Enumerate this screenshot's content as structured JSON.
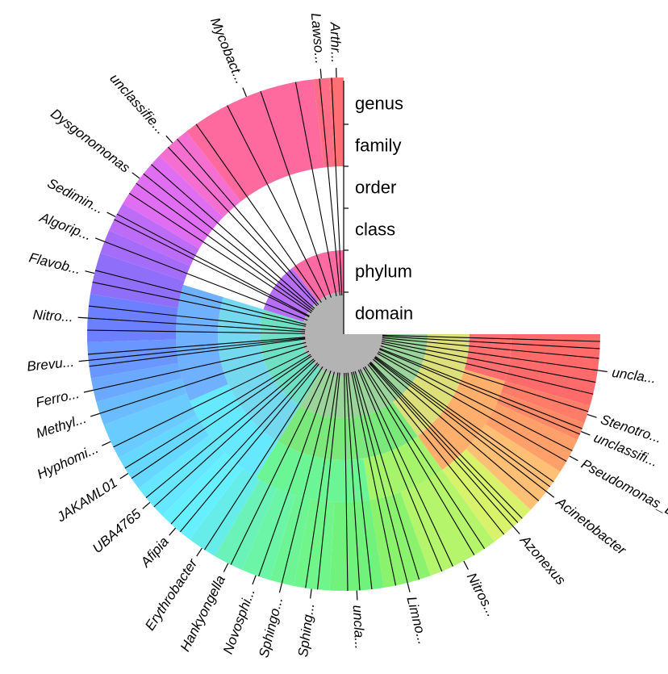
{
  "chart_data": {
    "type": "sunburst",
    "title": "",
    "ranks": [
      "genus",
      "family",
      "order",
      "class",
      "phylum",
      "domain"
    ],
    "arc_span_deg": 270,
    "outer_labels": [
      "unclа...",
      "Stenotro...",
      "unclassifi...",
      "Pseudomonas_E",
      "Acinetobacter",
      "Azonexus",
      "Nitros...",
      "Limno...",
      "uncla...",
      "Sphing...",
      "Sphingo...",
      "Novosphi...",
      "Hankyongella",
      "Erythrobacter",
      "Afipia",
      "UBA4765",
      "JAKAML01",
      "Hyphomi...",
      "Methyl...",
      "Ferro...",
      "Brevu...",
      "Nitro...",
      "Flavob...",
      "Algorip...",
      "Sedimin...",
      "Dysgonomonas",
      "unclassifie...",
      "Mycobact...",
      "Lawso...",
      "Arthr..."
    ],
    "inner_groups": [
      {
        "level": "domain",
        "name": "",
        "start": 0.0,
        "end": 1.0,
        "color": "#b3b3b3"
      },
      {
        "level": "phylum",
        "name": "",
        "start": 0.0,
        "end": 0.45,
        "color": "#9ad49b"
      },
      {
        "level": "phylum",
        "name": "",
        "start": 0.45,
        "end": 0.73,
        "color": "#6fe0c4"
      },
      {
        "level": "phylum",
        "name": "",
        "start": 0.73,
        "end": 0.86,
        "color": "#b56ef5"
      },
      {
        "level": "phylum",
        "name": "",
        "start": 0.86,
        "end": 1.0,
        "color": "#ff6aa3"
      },
      {
        "level": "class",
        "name": "",
        "start": 0.0,
        "end": 0.2,
        "color": "#dde07a"
      },
      {
        "level": "class",
        "name": "",
        "start": 0.2,
        "end": 0.45,
        "color": "#7be87c"
      },
      {
        "level": "class",
        "name": "",
        "start": 0.45,
        "end": 0.73,
        "color": "#74d9ee"
      },
      {
        "level": "order",
        "name": "",
        "start": 0.0,
        "end": 0.06,
        "color": "#ff6f6f"
      },
      {
        "level": "order",
        "name": "",
        "start": 0.06,
        "end": 0.2,
        "color": "#ffaf6c"
      },
      {
        "level": "order",
        "name": "",
        "start": 0.2,
        "end": 0.3,
        "color": "#a5f46b"
      },
      {
        "level": "order",
        "name": "",
        "start": 0.3,
        "end": 0.45,
        "color": "#6cf595"
      },
      {
        "level": "order",
        "name": "",
        "start": 0.45,
        "end": 0.58,
        "color": "#66e8ff"
      },
      {
        "level": "order",
        "name": "",
        "start": 0.58,
        "end": 0.73,
        "color": "#6fb0ff"
      }
    ],
    "genera": [
      {
        "start": 0.0,
        "end": 0.06,
        "color": "#ff6b6b",
        "label_index": 0
      },
      {
        "start": 0.06,
        "end": 0.075,
        "color": "#ff7c68",
        "label_index": 1
      },
      {
        "start": 0.075,
        "end": 0.09,
        "color": "#ff8a66",
        "label_index": 2
      },
      {
        "start": 0.09,
        "end": 0.12,
        "color": "#ffa06a",
        "label_index": 3
      },
      {
        "start": 0.12,
        "end": 0.16,
        "color": "#ffbf74",
        "label_index": 4
      },
      {
        "start": 0.16,
        "end": 0.2,
        "color": "#d8f36b",
        "label_index": 5
      },
      {
        "start": 0.2,
        "end": 0.26,
        "color": "#b4f56b",
        "label_index": 6
      },
      {
        "start": 0.26,
        "end": 0.3,
        "color": "#8af26d",
        "label_index": 7
      },
      {
        "start": 0.3,
        "end": 0.345,
        "color": "#70f27c",
        "label_index": 8
      },
      {
        "start": 0.345,
        "end": 0.375,
        "color": "#6ff58a",
        "label_index": 9
      },
      {
        "start": 0.375,
        "end": 0.395,
        "color": "#6df595",
        "label_index": 10
      },
      {
        "start": 0.395,
        "end": 0.42,
        "color": "#6cf5a6",
        "label_index": 11
      },
      {
        "start": 0.42,
        "end": 0.445,
        "color": "#6af2b9",
        "label_index": 12
      },
      {
        "start": 0.445,
        "end": 0.47,
        "color": "#66ece9",
        "label_index": 13
      },
      {
        "start": 0.47,
        "end": 0.5,
        "color": "#66f0ff",
        "label_index": 14
      },
      {
        "start": 0.5,
        "end": 0.53,
        "color": "#66e6ff",
        "label_index": 15
      },
      {
        "start": 0.53,
        "end": 0.56,
        "color": "#66d8ff",
        "label_index": 16
      },
      {
        "start": 0.56,
        "end": 0.59,
        "color": "#69cbff",
        "label_index": 17
      },
      {
        "start": 0.59,
        "end": 0.61,
        "color": "#6bbcff",
        "label_index": 18
      },
      {
        "start": 0.61,
        "end": 0.63,
        "color": "#6aa9ff",
        "label_index": 19
      },
      {
        "start": 0.63,
        "end": 0.66,
        "color": "#6a96ff",
        "label_index": 20
      },
      {
        "start": 0.66,
        "end": 0.7,
        "color": "#6c7fff",
        "label_index": 21
      },
      {
        "start": 0.7,
        "end": 0.735,
        "color": "#8f6ff9",
        "label_index": 22
      },
      {
        "start": 0.735,
        "end": 0.755,
        "color": "#a46cf8",
        "label_index": 23
      },
      {
        "start": 0.755,
        "end": 0.78,
        "color": "#bd6cf7",
        "label_index": 24
      },
      {
        "start": 0.78,
        "end": 0.83,
        "color": "#df6ef2",
        "label_index": 25
      },
      {
        "start": 0.83,
        "end": 0.86,
        "color": "#f46fd0",
        "label_index": 26
      },
      {
        "start": 0.86,
        "end": 0.975,
        "color": "#ff6a9e",
        "label_index": 27
      },
      {
        "start": 0.975,
        "end": 0.988,
        "color": "#ff6d86",
        "label_index": 28
      },
      {
        "start": 0.988,
        "end": 1.0,
        "color": "#ff6f73",
        "label_index": 29
      }
    ],
    "leaf_dividers": [
      0.006,
      0.012,
      0.02,
      0.03,
      0.04,
      0.05,
      0.065,
      0.08,
      0.085,
      0.1,
      0.11,
      0.13,
      0.135,
      0.14,
      0.15,
      0.17,
      0.175,
      0.18,
      0.19,
      0.21,
      0.22,
      0.24,
      0.25,
      0.27,
      0.28,
      0.29,
      0.31,
      0.32,
      0.33,
      0.355,
      0.365,
      0.385,
      0.405,
      0.43,
      0.455,
      0.48,
      0.49,
      0.51,
      0.52,
      0.54,
      0.55,
      0.57,
      0.6,
      0.62,
      0.64,
      0.645,
      0.65,
      0.67,
      0.68,
      0.69,
      0.71,
      0.72,
      0.745,
      0.765,
      0.77,
      0.79,
      0.8,
      0.81,
      0.82,
      0.84,
      0.85,
      0.87,
      0.9,
      0.93,
      0.96,
      0.98,
      0.99
    ]
  }
}
